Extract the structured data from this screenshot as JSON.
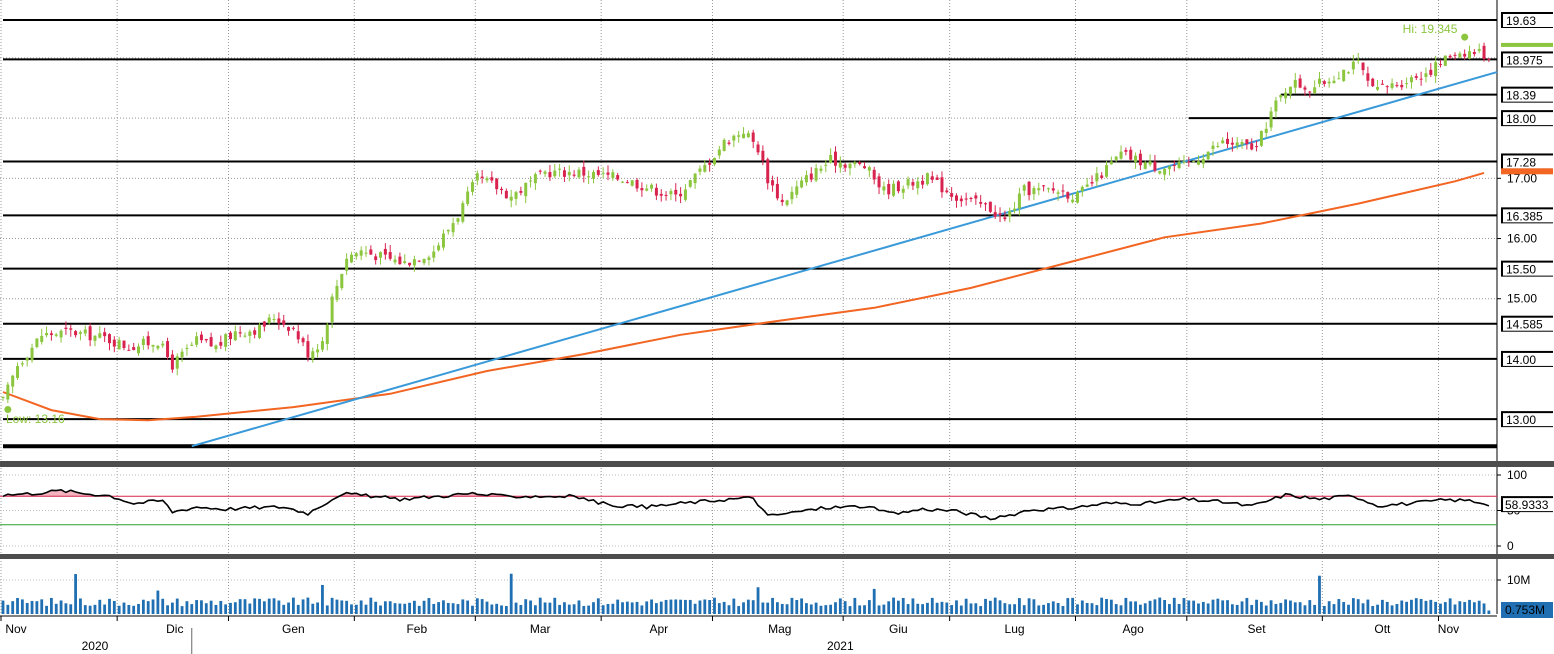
{
  "chart_data": [
    {
      "type": "candlestick",
      "panel": "price",
      "ylim": [
        12.55,
        19.9
      ],
      "grid": true,
      "colors": {
        "up": "#8cc63f",
        "down": "#d9234f",
        "ma": "#f26522",
        "trend": "#3a9ad9",
        "level": "#000000"
      },
      "price_tags": [
        "19.63",
        "18.975",
        "18.39",
        "18.00",
        "17.28",
        "16.385",
        "15.50",
        "14.585",
        "14.00",
        "13.00"
      ],
      "tick_labels": [
        "17.00",
        "16.00",
        "15.00"
      ],
      "horizontal_levels": [
        {
          "value": 19.63,
          "start_day": 0
        },
        {
          "value": 18.975,
          "start_day": 0
        },
        {
          "value": 18.39,
          "start_day": 264
        },
        {
          "value": 18.0,
          "start_day": 245
        },
        {
          "value": 17.28,
          "start_day": 0
        },
        {
          "value": 16.385,
          "start_day": 0
        },
        {
          "value": 15.5,
          "start_day": 0
        },
        {
          "value": 14.585,
          "start_day": 0
        },
        {
          "value": 14.0,
          "start_day": 0
        },
        {
          "value": 13.0,
          "start_day": 0
        },
        {
          "value": 12.55,
          "start_day": 0
        }
      ],
      "trendline": [
        {
          "day": 39,
          "value": 12.55
        },
        {
          "day": 308,
          "value": 18.75
        }
      ],
      "moving_average": [
        {
          "day": 0,
          "value": 13.45
        },
        {
          "day": 10,
          "value": 13.15
        },
        {
          "day": 20,
          "value": 13.0
        },
        {
          "day": 30,
          "value": 12.98
        },
        {
          "day": 40,
          "value": 13.04
        },
        {
          "day": 60,
          "value": 13.2
        },
        {
          "day": 80,
          "value": 13.42
        },
        {
          "day": 100,
          "value": 13.8
        },
        {
          "day": 120,
          "value": 14.08
        },
        {
          "day": 140,
          "value": 14.4
        },
        {
          "day": 160,
          "value": 14.63
        },
        {
          "day": 180,
          "value": 14.85
        },
        {
          "day": 200,
          "value": 15.18
        },
        {
          "day": 220,
          "value": 15.6
        },
        {
          "day": 240,
          "value": 16.02
        },
        {
          "day": 260,
          "value": 16.25
        },
        {
          "day": 280,
          "value": 16.58
        },
        {
          "day": 300,
          "value": 16.95
        },
        {
          "day": 306,
          "value": 17.09
        }
      ],
      "close_path": [
        {
          "day": 0,
          "value": 13.3
        },
        {
          "day": 3,
          "value": 13.9
        },
        {
          "day": 8,
          "value": 14.4
        },
        {
          "day": 14,
          "value": 14.45
        },
        {
          "day": 21,
          "value": 14.35
        },
        {
          "day": 26,
          "value": 14.2
        },
        {
          "day": 32,
          "value": 14.3
        },
        {
          "day": 35,
          "value": 13.9
        },
        {
          "day": 40,
          "value": 14.3
        },
        {
          "day": 44,
          "value": 14.2
        },
        {
          "day": 48,
          "value": 14.45
        },
        {
          "day": 53,
          "value": 14.5
        },
        {
          "day": 56,
          "value": 14.7
        },
        {
          "day": 60,
          "value": 14.5
        },
        {
          "day": 63,
          "value": 14.1
        },
        {
          "day": 66,
          "value": 14.3
        },
        {
          "day": 68,
          "value": 15.0
        },
        {
          "day": 71,
          "value": 15.7
        },
        {
          "day": 74,
          "value": 15.8
        },
        {
          "day": 78,
          "value": 15.7
        },
        {
          "day": 83,
          "value": 15.6
        },
        {
          "day": 89,
          "value": 15.8
        },
        {
          "day": 94,
          "value": 16.4
        },
        {
          "day": 98,
          "value": 17.0
        },
        {
          "day": 101,
          "value": 16.9
        },
        {
          "day": 105,
          "value": 16.7
        },
        {
          "day": 112,
          "value": 17.1
        },
        {
          "day": 119,
          "value": 17.1
        },
        {
          "day": 128,
          "value": 17.0
        },
        {
          "day": 135,
          "value": 16.8
        },
        {
          "day": 139,
          "value": 16.7
        },
        {
          "day": 145,
          "value": 17.2
        },
        {
          "day": 149,
          "value": 17.6
        },
        {
          "day": 153,
          "value": 17.8
        },
        {
          "day": 156,
          "value": 17.5
        },
        {
          "day": 158,
          "value": 17.0
        },
        {
          "day": 161,
          "value": 16.6
        },
        {
          "day": 166,
          "value": 17.0
        },
        {
          "day": 171,
          "value": 17.3
        },
        {
          "day": 178,
          "value": 17.2
        },
        {
          "day": 182,
          "value": 16.8
        },
        {
          "day": 191,
          "value": 17.0
        },
        {
          "day": 197,
          "value": 16.7
        },
        {
          "day": 204,
          "value": 16.5
        },
        {
          "day": 207,
          "value": 16.3
        },
        {
          "day": 211,
          "value": 16.8
        },
        {
          "day": 218,
          "value": 16.8
        },
        {
          "day": 222,
          "value": 16.7
        },
        {
          "day": 226,
          "value": 17.0
        },
        {
          "day": 231,
          "value": 17.4
        },
        {
          "day": 238,
          "value": 17.2
        },
        {
          "day": 244,
          "value": 17.2
        },
        {
          "day": 252,
          "value": 17.6
        },
        {
          "day": 259,
          "value": 17.5
        },
        {
          "day": 262,
          "value": 18.1
        },
        {
          "day": 266,
          "value": 18.6
        },
        {
          "day": 270,
          "value": 18.5
        },
        {
          "day": 273,
          "value": 18.6
        },
        {
          "day": 277,
          "value": 18.8
        },
        {
          "day": 280,
          "value": 18.9
        },
        {
          "day": 283,
          "value": 18.45
        },
        {
          "day": 289,
          "value": 18.6
        },
        {
          "day": 295,
          "value": 18.8
        },
        {
          "day": 300,
          "value": 19.1
        },
        {
          "day": 305,
          "value": 19.1
        },
        {
          "day": 307,
          "value": 19.0
        }
      ],
      "annotations": [
        "Hi: 19.345",
        "Low: 13.16"
      ]
    },
    {
      "type": "line",
      "panel": "oscillator",
      "ylim": [
        0,
        100
      ],
      "tick_labels": [
        "100",
        "50",
        "0"
      ],
      "last_value": "58.9333",
      "reference_levels": [
        {
          "value": 70,
          "color": "#d9234f"
        },
        {
          "value": 30,
          "color": "#2ca02c"
        }
      ],
      "values": [
        {
          "day": 0,
          "value": 72
        },
        {
          "day": 6,
          "value": 74
        },
        {
          "day": 12,
          "value": 78
        },
        {
          "day": 17,
          "value": 74
        },
        {
          "day": 22,
          "value": 71
        },
        {
          "day": 27,
          "value": 60
        },
        {
          "day": 33,
          "value": 64
        },
        {
          "day": 35,
          "value": 48
        },
        {
          "day": 40,
          "value": 55
        },
        {
          "day": 46,
          "value": 52
        },
        {
          "day": 52,
          "value": 54
        },
        {
          "day": 58,
          "value": 55
        },
        {
          "day": 63,
          "value": 46
        },
        {
          "day": 66,
          "value": 58
        },
        {
          "day": 70,
          "value": 74
        },
        {
          "day": 76,
          "value": 70
        },
        {
          "day": 82,
          "value": 66
        },
        {
          "day": 90,
          "value": 70
        },
        {
          "day": 97,
          "value": 74
        },
        {
          "day": 103,
          "value": 70
        },
        {
          "day": 110,
          "value": 70
        },
        {
          "day": 118,
          "value": 70
        },
        {
          "day": 125,
          "value": 58
        },
        {
          "day": 133,
          "value": 55
        },
        {
          "day": 140,
          "value": 60
        },
        {
          "day": 150,
          "value": 66
        },
        {
          "day": 155,
          "value": 68
        },
        {
          "day": 158,
          "value": 42
        },
        {
          "day": 163,
          "value": 47
        },
        {
          "day": 170,
          "value": 54
        },
        {
          "day": 178,
          "value": 56
        },
        {
          "day": 184,
          "value": 45
        },
        {
          "day": 190,
          "value": 52
        },
        {
          "day": 196,
          "value": 50
        },
        {
          "day": 205,
          "value": 38
        },
        {
          "day": 212,
          "value": 51
        },
        {
          "day": 220,
          "value": 53
        },
        {
          "day": 228,
          "value": 60
        },
        {
          "day": 236,
          "value": 60
        },
        {
          "day": 244,
          "value": 66
        },
        {
          "day": 252,
          "value": 62
        },
        {
          "day": 258,
          "value": 56
        },
        {
          "day": 265,
          "value": 72
        },
        {
          "day": 272,
          "value": 66
        },
        {
          "day": 279,
          "value": 71
        },
        {
          "day": 284,
          "value": 57
        },
        {
          "day": 291,
          "value": 60
        },
        {
          "day": 298,
          "value": 65
        },
        {
          "day": 303,
          "value": 64
        },
        {
          "day": 307,
          "value": 59
        }
      ]
    },
    {
      "type": "bar",
      "panel": "volume",
      "ylim": [
        0,
        14000000
      ],
      "tick_labels": [
        "10M"
      ],
      "last_value": "0.753M",
      "color": "#1f6fb2",
      "spikes": [
        {
          "day": 15,
          "value": 11800000
        },
        {
          "day": 32,
          "value": 6800000
        },
        {
          "day": 66,
          "value": 8500000
        },
        {
          "day": 105,
          "value": 11900000
        },
        {
          "day": 156,
          "value": 7800000
        },
        {
          "day": 180,
          "value": 7300000
        },
        {
          "day": 272,
          "value": 11300000
        }
      ],
      "base_level": 3000000,
      "last_bar": 753000
    }
  ],
  "x_axis": {
    "months": [
      {
        "label": "Nov",
        "day": 0
      },
      {
        "label": "Dic",
        "day": 24
      },
      {
        "label": "Gen",
        "day": 47
      },
      {
        "label": "Feb",
        "day": 73
      },
      {
        "label": "Mar",
        "day": 98
      },
      {
        "label": "Apr",
        "day": 124
      },
      {
        "label": "Mag",
        "day": 147
      },
      {
        "label": "Giu",
        "day": 174
      },
      {
        "label": "Lug",
        "day": 196
      },
      {
        "label": "Ago",
        "day": 222
      },
      {
        "label": "Set",
        "day": 245
      },
      {
        "label": "Ott",
        "day": 273
      },
      {
        "label": "Nov",
        "day": 297
      }
    ],
    "years": [
      {
        "label": "2020"
      },
      {
        "label": "2021"
      }
    ]
  }
}
